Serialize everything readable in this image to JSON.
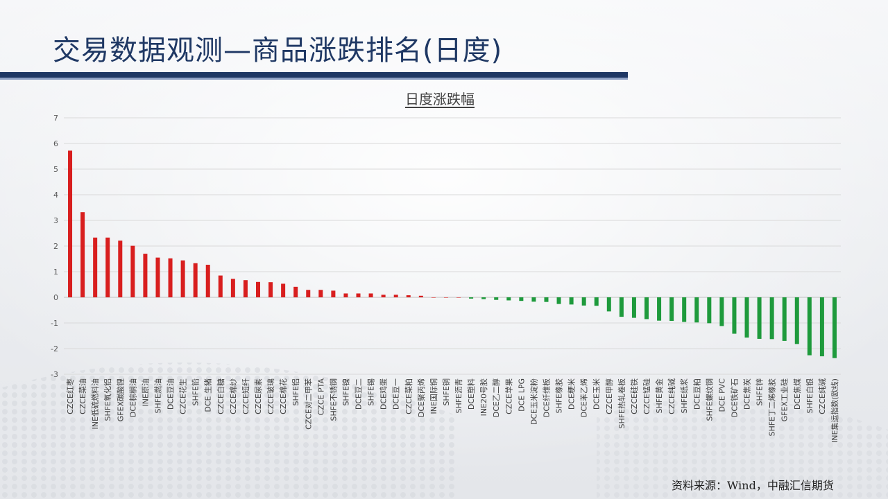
{
  "page": {
    "title": "交易数据观测—商品涨跌排名(日度)",
    "source": "资料来源：Wind，中融汇信期货"
  },
  "colors": {
    "title": "#1f3864",
    "up": "#d81e1e",
    "down": "#1e9a3c"
  },
  "chart_data": {
    "type": "bar",
    "title": "日度涨跌幅",
    "xlabel": "",
    "ylabel": "",
    "ylim": [
      -3,
      7
    ],
    "yticks": [
      7,
      6,
      5,
      4,
      3,
      2,
      1,
      0,
      -1,
      -2,
      -3
    ],
    "grid": true,
    "categories": [
      "CZCE红枣",
      "CZCE菜油",
      "INE低硫燃料油",
      "SHFE氧化铝",
      "GFEX碳酸锂",
      "DCE棕榈油",
      "INE原油",
      "SHFE燃油",
      "DCE豆油",
      "CZCE花生",
      "SHFE铅",
      "DCE 生猪",
      "CZCE白糖",
      "CZCE棉纱",
      "CZCE短纤",
      "CZCE尿素",
      "CZCE玻璃",
      "CZCE棉花",
      "SHFE铝",
      "CZCE对二甲苯",
      "CZCE PTA",
      "SHFE不锈钢",
      "SHFE镍",
      "DCE豆二",
      "SHFE锡",
      "DCE鸡蛋",
      "DCE豆一",
      "CZCE菜粕",
      "DCE聚丙烯",
      "INE国际铜",
      "SHFE铜",
      "SHFE沥青",
      "DCE塑料",
      "INE20号胶",
      "DCE乙二醇",
      "CZCE苹果",
      "DCE LPG",
      "DCE玉米淀粉",
      "DCE纤维板",
      "SHFE橡胶",
      "DCE粳米",
      "DCE苯乙烯",
      "DCE玉米",
      "CZCE甲醇",
      "SHFE热轧卷板",
      "CZCE硅铁",
      "CZCE锰硅",
      "SHFE黄金",
      "CZCE纯碱",
      "SHFE纸浆",
      "DCE豆粕",
      "SHFE螺纹钢",
      "DCE PVC",
      "DCE铁矿石",
      "DCE焦炭",
      "SHFE锌",
      "SHFE丁二烯橡胶",
      "GFEX工业硅",
      "DCE焦煤",
      "SHFE白银",
      "CZCE纯碱",
      "INE集运指数(欧线)"
    ],
    "values": [
      5.72,
      3.32,
      2.33,
      2.33,
      2.21,
      2.01,
      1.7,
      1.55,
      1.52,
      1.44,
      1.33,
      1.27,
      0.85,
      0.72,
      0.67,
      0.6,
      0.59,
      0.53,
      0.41,
      0.29,
      0.29,
      0.26,
      0.15,
      0.15,
      0.15,
      0.1,
      0.1,
      0.08,
      0.06,
      0.0,
      0.0,
      0.0,
      -0.05,
      -0.07,
      -0.1,
      -0.12,
      -0.14,
      -0.17,
      -0.18,
      -0.26,
      -0.28,
      -0.32,
      -0.33,
      -0.55,
      -0.76,
      -0.8,
      -0.85,
      -0.91,
      -0.92,
      -0.96,
      -0.98,
      -1.01,
      -1.12,
      -1.42,
      -1.57,
      -1.62,
      -1.63,
      -1.7,
      -1.82,
      -2.26,
      -2.3,
      -2.37
    ]
  }
}
